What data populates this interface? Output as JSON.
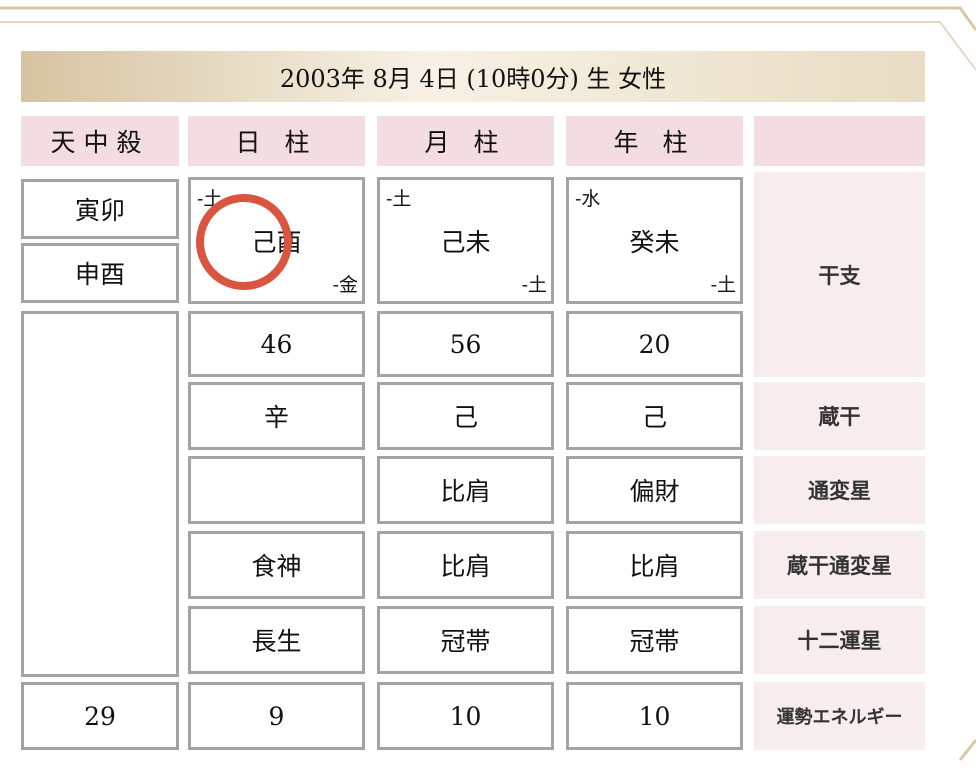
{
  "title": "2003年 8月 4日 (10時0分)  生  女性",
  "headers": {
    "tenchusatsu": "天中殺",
    "day": "日 柱",
    "month": "月 柱",
    "year": "年 柱",
    "blank": ""
  },
  "tenchusatsu": [
    "寅卯",
    "申酉"
  ],
  "pillars": {
    "day": {
      "top": "-土",
      "ganzhi": "己酉",
      "bottom": "-金",
      "number": "46",
      "zokan": "辛",
      "tsuhensei": "",
      "zokan_tsuhensei": "食神",
      "juniunsei": "長生",
      "energy": "9"
    },
    "month": {
      "top": "-土",
      "ganzhi": "己未",
      "bottom": "-土",
      "number": "56",
      "zokan": "己",
      "tsuhensei": "比肩",
      "zokan_tsuhensei": "比肩",
      "juniunsei": "冠帯",
      "energy": "10"
    },
    "year": {
      "top": "-水",
      "ganzhi": "癸未",
      "bottom": "-土",
      "number": "20",
      "zokan": "己",
      "tsuhensei": "偏財",
      "zokan_tsuhensei": "比肩",
      "juniunsei": "冠帯",
      "energy": "10"
    }
  },
  "total_energy": "29",
  "labels": {
    "kanshi": "干支",
    "zokan": "蔵干",
    "tsuhensei": "通変星",
    "zokan_tsuhensei": "蔵干通変星",
    "juniunsei": "十二運星",
    "energy": "運勢エネルギー"
  },
  "annotation_color": "#d9553f"
}
